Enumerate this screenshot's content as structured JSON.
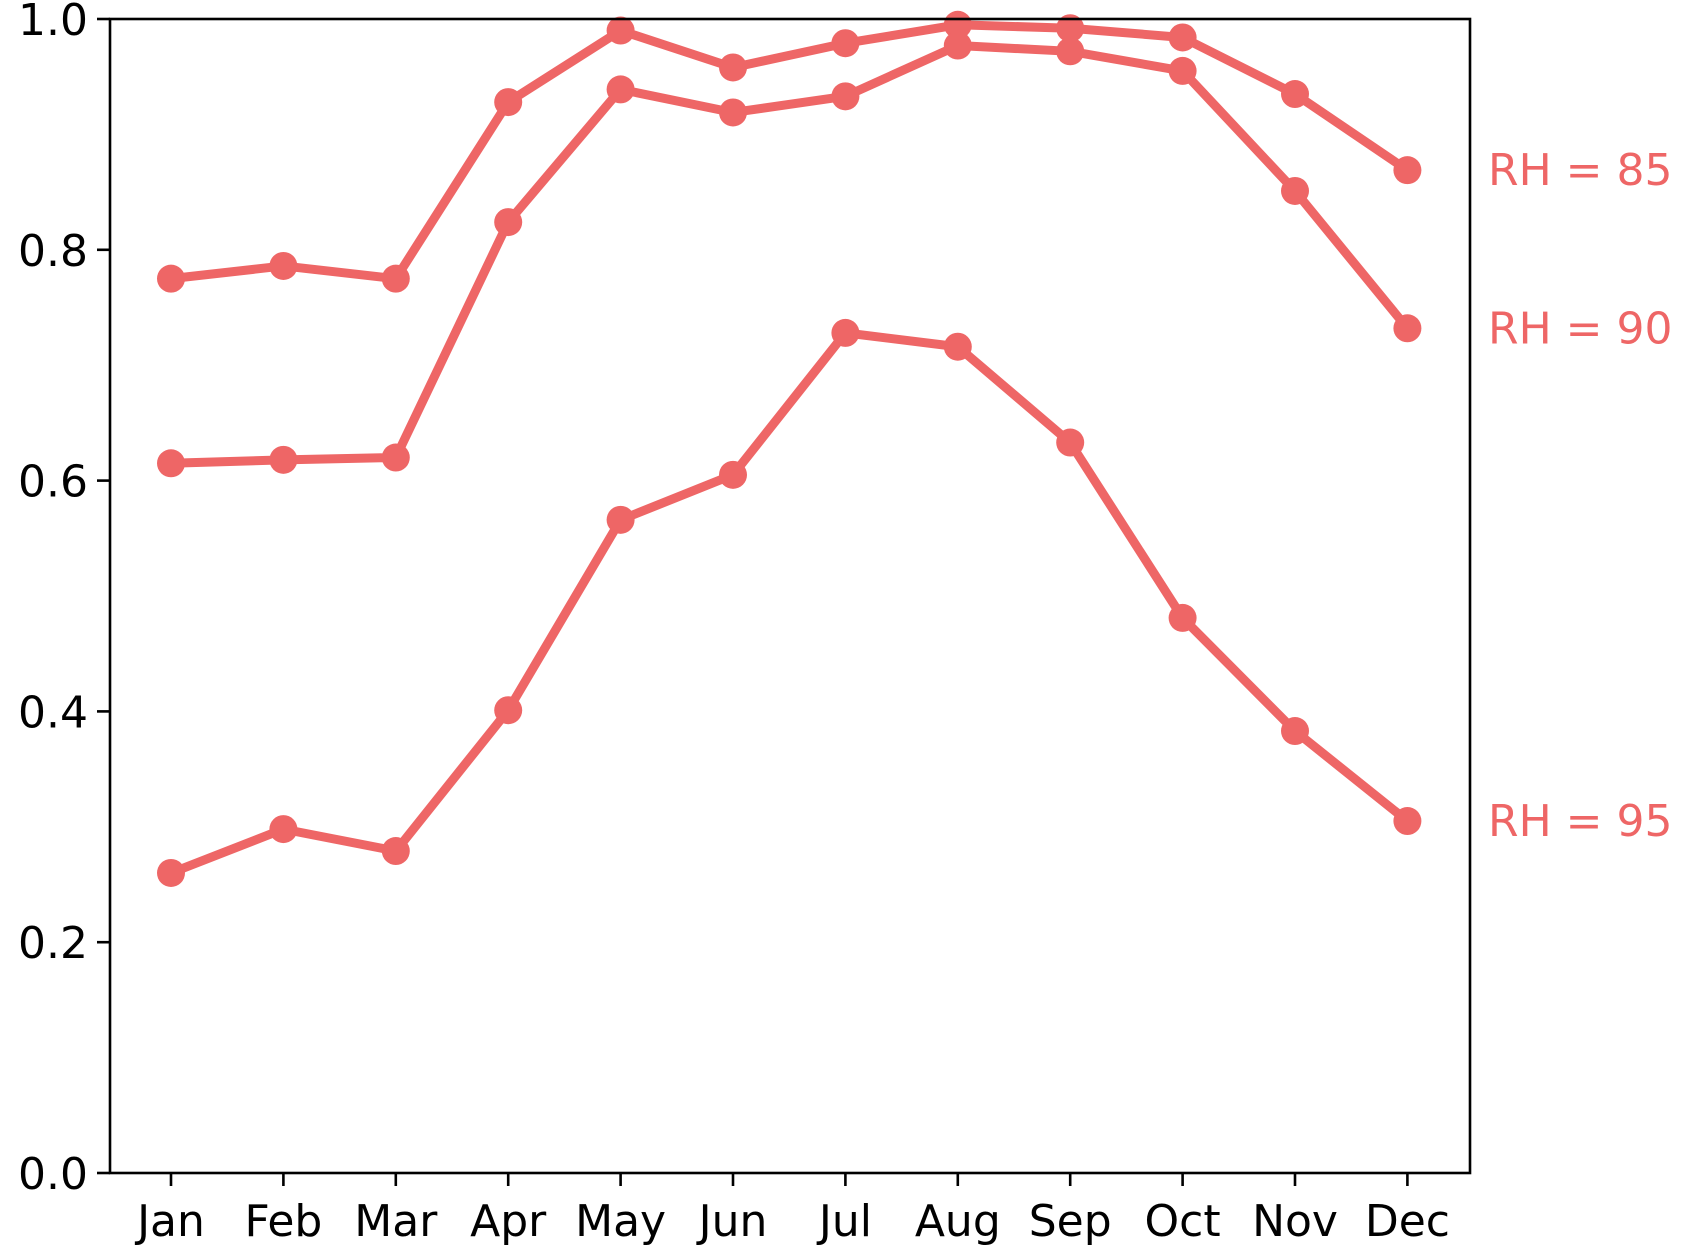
{
  "chart_data": {
    "type": "line",
    "categories": [
      "Jan",
      "Feb",
      "Mar",
      "Apr",
      "May",
      "Jun",
      "Jul",
      "Aug",
      "Sep",
      "Oct",
      "Nov",
      "Dec"
    ],
    "ylim": [
      0.0,
      1.0
    ],
    "yticks": [
      "0.0",
      "0.2",
      "0.4",
      "0.6",
      "0.8",
      "1.0"
    ],
    "title": "",
    "xlabel": "",
    "ylabel": "",
    "grid": false,
    "legend": "none",
    "color": "#EE6666",
    "series": [
      {
        "name": "RH = 85",
        "values": [
          0.775,
          0.786,
          0.775,
          0.928,
          0.99,
          0.958,
          0.979,
          0.995,
          0.992,
          0.984,
          0.935,
          0.869
        ]
      },
      {
        "name": "RH = 90",
        "values": [
          0.615,
          0.618,
          0.62,
          0.824,
          0.939,
          0.919,
          0.933,
          0.977,
          0.972,
          0.955,
          0.851,
          0.732
        ]
      },
      {
        "name": "RH = 95",
        "values": [
          0.26,
          0.298,
          0.279,
          0.401,
          0.566,
          0.605,
          0.728,
          0.716,
          0.633,
          0.481,
          0.383,
          0.305
        ]
      }
    ]
  }
}
